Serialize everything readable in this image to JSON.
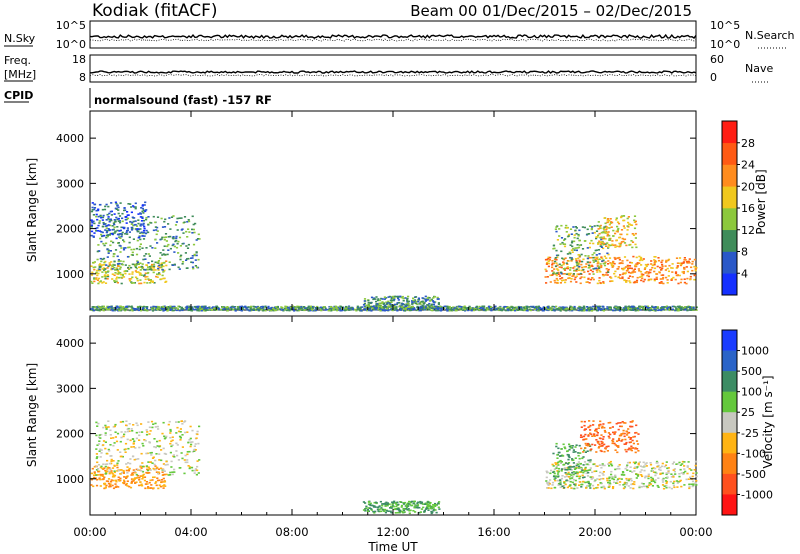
{
  "header": {
    "station": "Kodiak (fitACF)",
    "beam_dates": "Beam 00   01/Dec/2015 – 02/Dec/2015"
  },
  "strips": {
    "nsky_label": "N.Sky",
    "nsky_ticks": [
      "10^5",
      "10^0"
    ],
    "nsearch_label": "N.Search",
    "nsearch_ticks": [
      "10^5",
      "10^0"
    ],
    "freq_label": "Freq.",
    "freq_unit": "[MHz]",
    "freq_ticks": [
      "18",
      "8"
    ],
    "nave_label": "Nave",
    "nave_ticks": [
      "60",
      "0"
    ],
    "cpid_label": "CPID",
    "cpid_value": "normalsound (fast) -157 RF"
  },
  "chart_data": [
    {
      "type": "heatmap",
      "panel": "power",
      "ylabel": "Slant Range [km]",
      "ylim": [
        200,
        4600
      ],
      "yticks": [
        1000,
        2000,
        3000,
        4000
      ],
      "xlim": [
        0,
        24
      ],
      "colorbar": {
        "label": "Power [dB]",
        "ticks": [
          "4",
          "8",
          "12",
          "16",
          "20",
          "24",
          "28"
        ],
        "colors": [
          "#1530ff",
          "#2a58c8",
          "#3f8c5a",
          "#8cc83c",
          "#f0c81e",
          "#ff8c1e",
          "#ff5a14",
          "#ff1e14"
        ]
      },
      "echo_regions": [
        {
          "t0": 0.0,
          "t1": 3.0,
          "r0": 800,
          "r1": 1300,
          "level": 16
        },
        {
          "t0": 0.2,
          "t1": 4.3,
          "r0": 1100,
          "r1": 2300,
          "level": 10
        },
        {
          "t0": 0.0,
          "t1": 2.2,
          "r0": 1800,
          "r1": 2600,
          "level": 6
        },
        {
          "t0": 10.8,
          "t1": 13.8,
          "r0": 250,
          "r1": 520,
          "level": 10
        },
        {
          "t0": 18.0,
          "t1": 24.0,
          "r0": 800,
          "r1": 1400,
          "level": 22
        },
        {
          "t0": 18.3,
          "t1": 20.5,
          "r0": 1000,
          "r1": 2100,
          "level": 12
        },
        {
          "t0": 20.0,
          "t1": 21.6,
          "r0": 1600,
          "r1": 2300,
          "level": 18
        },
        {
          "t0": 0.0,
          "t1": 24.0,
          "r0": 200,
          "r1": 300,
          "level": 10
        }
      ]
    },
    {
      "type": "heatmap",
      "panel": "velocity",
      "ylabel": "Slant Range [km]",
      "ylim": [
        200,
        4600
      ],
      "yticks": [
        1000,
        2000,
        3000,
        4000
      ],
      "xlim": [
        0,
        24
      ],
      "xlabel": "Time UT",
      "xticks": [
        "00:00",
        "04:00",
        "08:00",
        "12:00",
        "16:00",
        "20:00",
        "00:00"
      ],
      "colorbar": {
        "label": "Velocity [m s⁻¹]",
        "ticks": [
          "1000",
          "500",
          "100",
          "25",
          "-25",
          "-100",
          "-500",
          "-1000"
        ],
        "colors": [
          "#1a3cff",
          "#2a64c8",
          "#3c8c64",
          "#64c83c",
          "#c8c8c0",
          "#ffb414",
          "#ff8214",
          "#ff501e",
          "#ff1414"
        ]
      },
      "echo_regions": [
        {
          "t0": 0.0,
          "t1": 3.0,
          "r0": 800,
          "r1": 1300,
          "level": -100
        },
        {
          "t0": 0.2,
          "t1": 4.3,
          "r0": 1100,
          "r1": 2300,
          "level": 0
        },
        {
          "t0": 10.8,
          "t1": 13.8,
          "r0": 250,
          "r1": 520,
          "level": 100
        },
        {
          "t0": 18.0,
          "t1": 24.0,
          "r0": 800,
          "r1": 1400,
          "level": 0
        },
        {
          "t0": 18.3,
          "t1": 19.8,
          "r0": 800,
          "r1": 1800,
          "level": 100
        },
        {
          "t0": 19.4,
          "t1": 21.7,
          "r0": 1600,
          "r1": 2300,
          "level": -500
        }
      ]
    }
  ]
}
